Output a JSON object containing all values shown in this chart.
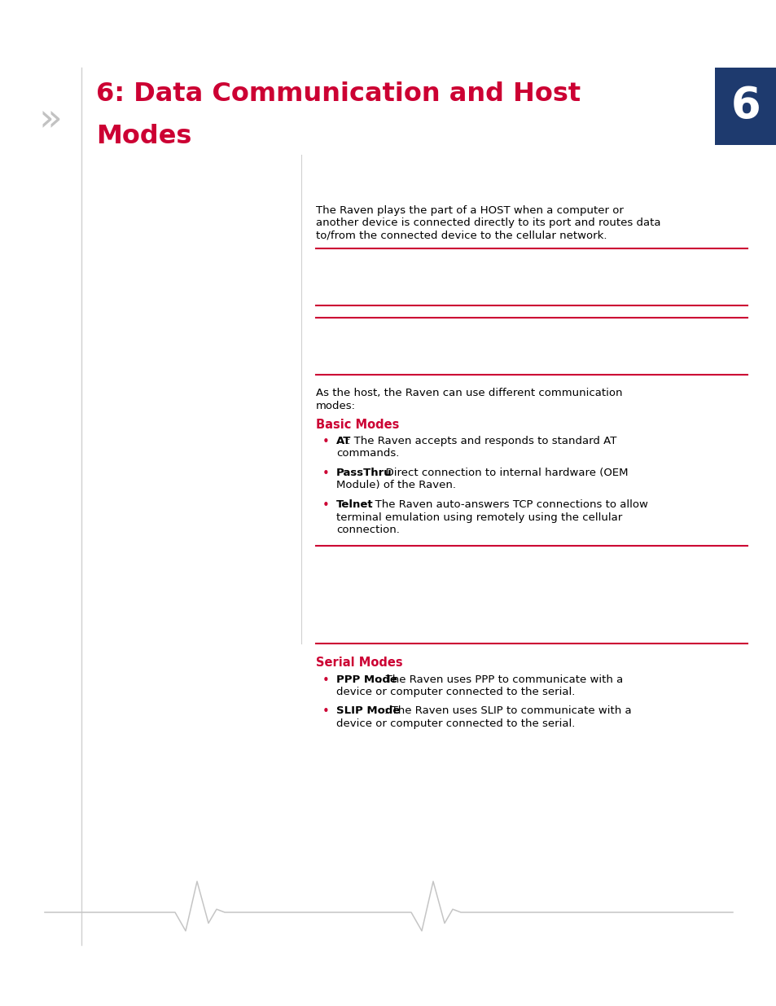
{
  "bg_color": "#ffffff",
  "title_line1": "6: Data Communication and Host",
  "title_line2": "Modes",
  "chapter_num": "6",
  "chapter_box_color": "#1e3a6e",
  "title_color": "#cc0033",
  "red_color": "#cc0033",
  "text_color": "#000000",
  "gray_color": "#c0c0c0",
  "intro_text_line1": "The Raven plays the part of a HOST when a computer or",
  "intro_text_line2": "another device is connected directly to its port and routes data",
  "intro_text_line3": "to/from the connected device to the cellular network.",
  "mid_text_line1": "As the host, the Raven can use different communication",
  "mid_text_line2": "modes:",
  "basic_modes_heading": "Basic Modes",
  "serial_modes_heading": "Serial Modes",
  "bullet_at_bold": "AT",
  "bullet_at_rest": ": The Raven accepts and responds to standard AT",
  "bullet_at_rest2": "commands.",
  "bullet_passthru_bold": "PassThru",
  "bullet_passthru_rest": ": Direct connection to internal hardware (OEM",
  "bullet_passthru_rest2": "Module) of the Raven.",
  "bullet_telnet_bold": "Telnet",
  "bullet_telnet_rest": ": The Raven auto-answers TCP connections to allow",
  "bullet_telnet_rest2": "terminal emulation using remotely using the cellular",
  "bullet_telnet_rest3": "connection.",
  "bullet_ppp_bold": "PPP Mode",
  "bullet_ppp_rest": ": The Raven uses PPP to communicate with a",
  "bullet_ppp_rest2": "device or computer connected to the serial.",
  "bullet_slip_bold": "SLIP Mode",
  "bullet_slip_rest": ": The Raven uses SLIP to communicate with a",
  "bullet_slip_rest2": "device or computer connected to the serial."
}
